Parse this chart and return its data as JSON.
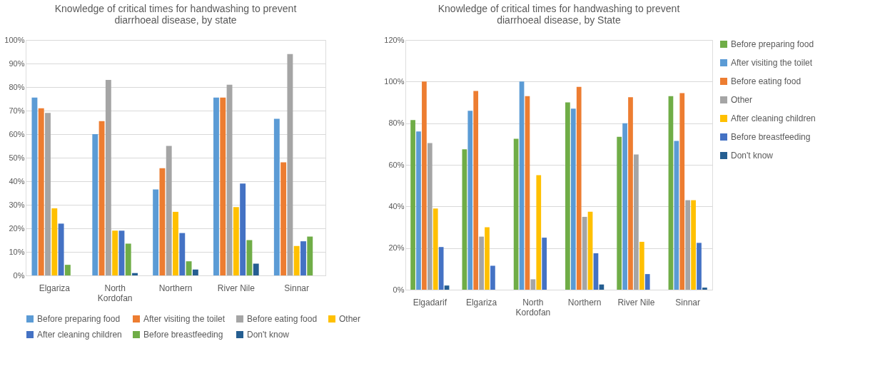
{
  "chart_data": [
    {
      "type": "bar",
      "title": "Knowledge of critical times for handwashing to prevent diarrhoeal disease, by state",
      "categories": [
        "Elgariza",
        "North Kordofan",
        "Northern",
        "River Nile",
        "Sinnar"
      ],
      "series": [
        {
          "name": "Before preparing food",
          "color": "#5b9bd5",
          "values": [
            75.5,
            60,
            36.5,
            75.5,
            66.5
          ]
        },
        {
          "name": "After visiting the toilet",
          "color": "#ed7d31",
          "values": [
            71,
            65.5,
            45.5,
            75.5,
            48
          ]
        },
        {
          "name": "Before eating food",
          "color": "#a5a5a5",
          "values": [
            69,
            83,
            55,
            81,
            94
          ]
        },
        {
          "name": "Other",
          "color": "#ffc000",
          "values": [
            28.5,
            19,
            27,
            29,
            12.5
          ]
        },
        {
          "name": "After cleaning children",
          "color": "#4472c4",
          "values": [
            22,
            19,
            18,
            39,
            14.5
          ]
        },
        {
          "name": "Before breastfeeding",
          "color": "#70ad47",
          "values": [
            4.5,
            13.5,
            6,
            15,
            16.5
          ]
        },
        {
          "name": "Don't know",
          "color": "#255e91",
          "values": [
            null,
            1,
            2.5,
            5,
            null
          ]
        }
      ],
      "ylim": [
        0,
        100
      ],
      "yticks": [
        {
          "value": 0,
          "label": "0%"
        },
        {
          "value": 10,
          "label": "10%"
        },
        {
          "value": 20,
          "label": "20%"
        },
        {
          "value": 30,
          "label": "30%"
        },
        {
          "value": 40,
          "label": "40%"
        },
        {
          "value": 50,
          "label": "50%"
        },
        {
          "value": 60,
          "label": "60%"
        },
        {
          "value": 70,
          "label": "70%"
        },
        {
          "value": 80,
          "label": "80%"
        },
        {
          "value": 90,
          "label": "90%"
        },
        {
          "value": 100,
          "label": "100%"
        }
      ],
      "grid": "y",
      "legend": "bottom"
    },
    {
      "type": "bar",
      "title": "Knowledge of critical times for handwashing to prevent diarrhoeal disease, by State",
      "categories": [
        "Elgadarif",
        "Elgariza",
        "North Kordofan",
        "Northern",
        "River Nile",
        "Sinnar"
      ],
      "series": [
        {
          "name": "Before preparing food",
          "color": "#70ad47",
          "values": [
            81.5,
            67.5,
            72.5,
            90,
            73.5,
            93
          ]
        },
        {
          "name": "After visiting the toilet",
          "color": "#5b9bd5",
          "values": [
            76,
            86,
            100,
            87,
            80,
            71.5
          ]
        },
        {
          "name": "Before eating food",
          "color": "#ed7d31",
          "values": [
            100,
            95.5,
            93,
            97.5,
            92.5,
            94.5
          ]
        },
        {
          "name": "Other",
          "color": "#a5a5a5",
          "values": [
            70.5,
            25.5,
            5,
            35,
            65,
            43
          ]
        },
        {
          "name": "After cleaning children",
          "color": "#ffc000",
          "values": [
            39,
            30,
            55,
            37.5,
            23,
            43
          ]
        },
        {
          "name": "Before breastfeeding",
          "color": "#4472c4",
          "values": [
            20.5,
            11.5,
            25,
            17.5,
            7.5,
            22.5
          ]
        },
        {
          "name": "Don't know",
          "color": "#255e91",
          "values": [
            2,
            null,
            null,
            2.5,
            null,
            1
          ]
        }
      ],
      "ylim": [
        0,
        120
      ],
      "yticks": [
        {
          "value": 0,
          "label": "0%"
        },
        {
          "value": 20,
          "label": "20%"
        },
        {
          "value": 40,
          "label": "40%"
        },
        {
          "value": 60,
          "label": "60%"
        },
        {
          "value": 80,
          "label": "80%"
        },
        {
          "value": 100,
          "label": "100%"
        },
        {
          "value": 120,
          "label": "120%"
        }
      ],
      "grid": "y",
      "legend": "right"
    }
  ]
}
